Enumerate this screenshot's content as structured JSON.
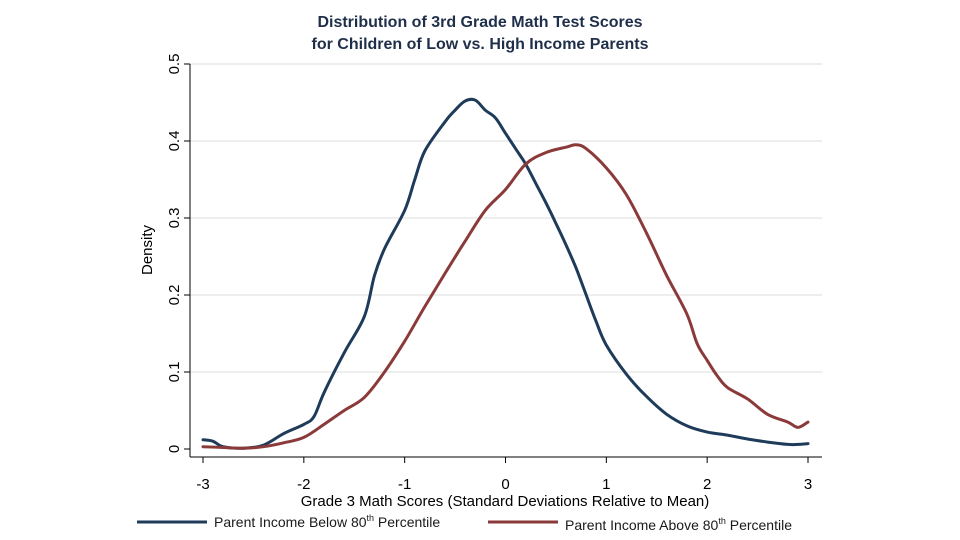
{
  "chart_data": {
    "type": "line",
    "title_lines": [
      "Distribution of 3rd Grade Math Test Scores",
      "for Children of Low vs. High Income Parents"
    ],
    "xlabel": "Grade 3 Math Scores (Standard Deviations Relative to Mean)",
    "ylabel": "Density",
    "xlim": [
      -3,
      3
    ],
    "ylim": [
      0,
      0.5
    ],
    "x_ticks": [
      -3,
      -2,
      -1,
      0,
      1,
      2,
      3
    ],
    "x_tick_labels": [
      "-3",
      "-2",
      "-1",
      "0",
      "1",
      "2",
      "3"
    ],
    "y_ticks": [
      0,
      0.1,
      0.2,
      0.3,
      0.4,
      0.5
    ],
    "y_tick_labels": [
      "0",
      "0.1",
      "0.2",
      "0.3",
      "0.4",
      "0.5"
    ],
    "grid": true,
    "legend_position": "bottom",
    "series": [
      {
        "name_parts": [
          "Parent Income Below 80",
          "th",
          " Percentile"
        ],
        "color": "#1f3b5a",
        "x": [
          -3.0,
          -2.9,
          -2.8,
          -2.6,
          -2.4,
          -2.2,
          -2.0,
          -1.9,
          -1.8,
          -1.6,
          -1.4,
          -1.3,
          -1.2,
          -1.0,
          -0.9,
          -0.8,
          -0.6,
          -0.5,
          -0.4,
          -0.3,
          -0.2,
          -0.1,
          0.0,
          0.1,
          0.2,
          0.3,
          0.4,
          0.5,
          0.6,
          0.7,
          0.8,
          0.9,
          1.0,
          1.2,
          1.4,
          1.6,
          1.8,
          2.0,
          2.2,
          2.4,
          2.6,
          2.8,
          2.9,
          3.0
        ],
        "y": [
          0.012,
          0.01,
          0.003,
          0.001,
          0.005,
          0.02,
          0.032,
          0.042,
          0.073,
          0.125,
          0.172,
          0.225,
          0.26,
          0.31,
          0.35,
          0.387,
          0.425,
          0.44,
          0.452,
          0.453,
          0.44,
          0.43,
          0.41,
          0.39,
          0.37,
          0.345,
          0.32,
          0.293,
          0.265,
          0.235,
          0.2,
          0.165,
          0.135,
          0.097,
          0.068,
          0.045,
          0.03,
          0.022,
          0.018,
          0.013,
          0.009,
          0.006,
          0.006,
          0.007
        ]
      },
      {
        "name_parts": [
          "Parent Income Above 80",
          "th",
          " Percentile"
        ],
        "color": "#8b3a3a",
        "x": [
          -3.0,
          -2.8,
          -2.6,
          -2.4,
          -2.2,
          -2.0,
          -1.8,
          -1.6,
          -1.4,
          -1.2,
          -1.0,
          -0.8,
          -0.6,
          -0.4,
          -0.2,
          0.0,
          0.2,
          0.4,
          0.6,
          0.7,
          0.8,
          1.0,
          1.2,
          1.4,
          1.6,
          1.8,
          1.9,
          2.0,
          2.1,
          2.2,
          2.4,
          2.6,
          2.8,
          2.9,
          3.0
        ],
        "y": [
          0.003,
          0.002,
          0.001,
          0.003,
          0.008,
          0.015,
          0.032,
          0.05,
          0.067,
          0.1,
          0.14,
          0.185,
          0.228,
          0.27,
          0.31,
          0.337,
          0.37,
          0.385,
          0.392,
          0.395,
          0.39,
          0.365,
          0.33,
          0.28,
          0.225,
          0.175,
          0.137,
          0.115,
          0.095,
          0.08,
          0.065,
          0.045,
          0.035,
          0.028,
          0.035
        ]
      }
    ]
  }
}
